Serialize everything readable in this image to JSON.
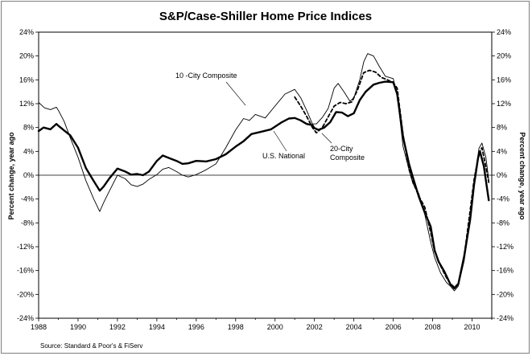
{
  "chart_data": {
    "type": "line",
    "title": "S&P/Case-Shiller Home Price Indices",
    "ylabel_left": "Percent change, year ago",
    "ylabel_right": "Percent change, year ago",
    "source": "Source: Standard & Poor's & FiServ",
    "xlim": [
      1988,
      2011
    ],
    "ylim": [
      -24,
      24
    ],
    "x_ticks": [
      1988,
      1990,
      1992,
      1994,
      1996,
      1998,
      2000,
      2002,
      2004,
      2006,
      2008,
      2010
    ],
    "y_ticks": [
      -24,
      -20,
      -16,
      -12,
      -8,
      -4,
      0,
      4,
      8,
      12,
      16,
      20,
      24
    ],
    "y_tick_labels": [
      "-24%",
      "-20%",
      "-16%",
      "-12%",
      "-8%",
      "-4%",
      "0%",
      "4%",
      "8%",
      "12%",
      "16%",
      "20%",
      "24%"
    ],
    "grid": false,
    "annotations": [
      {
        "text": "10 -City Composite",
        "series": "10 -City Composite"
      },
      {
        "text": "U.S. National",
        "series": "U.S. National"
      },
      {
        "text": "20-City",
        "series": "20-City Composite"
      },
      {
        "text": "Composite",
        "series": "20-City Composite"
      }
    ],
    "series": [
      {
        "name": "U.S. National",
        "color": "#000000",
        "style": "bold",
        "points": [
          [
            1988,
            7.4
          ],
          [
            1988.25,
            8.0
          ],
          [
            1988.6,
            7.7
          ],
          [
            1988.9,
            8.6
          ],
          [
            1989,
            8.3
          ],
          [
            1989.3,
            7.5
          ],
          [
            1989.6,
            6.7
          ],
          [
            1990,
            4.6
          ],
          [
            1990.4,
            1.2
          ],
          [
            1990.8,
            -1.0
          ],
          [
            1991.1,
            -2.6
          ],
          [
            1991.3,
            -1.9
          ],
          [
            1991.6,
            -0.5
          ],
          [
            1992,
            1.1
          ],
          [
            1992.4,
            0.6
          ],
          [
            1992.7,
            0.1
          ],
          [
            1993,
            0.2
          ],
          [
            1993.3,
            0.0
          ],
          [
            1993.6,
            0.6
          ],
          [
            1994,
            2.4
          ],
          [
            1994.3,
            3.3
          ],
          [
            1994.6,
            2.9
          ],
          [
            1995,
            2.4
          ],
          [
            1995.3,
            1.9
          ],
          [
            1995.6,
            2.0
          ],
          [
            1996,
            2.4
          ],
          [
            1996.5,
            2.3
          ],
          [
            1997,
            2.7
          ],
          [
            1997.5,
            3.5
          ],
          [
            1998,
            4.8
          ],
          [
            1998.4,
            5.7
          ],
          [
            1998.8,
            6.9
          ],
          [
            1999.3,
            7.3
          ],
          [
            1999.8,
            7.7
          ],
          [
            2000.3,
            8.8
          ],
          [
            2000.7,
            9.5
          ],
          [
            2001,
            9.6
          ],
          [
            2001.3,
            9.2
          ],
          [
            2001.6,
            8.6
          ],
          [
            2001.9,
            8.4
          ],
          [
            2002,
            7.9
          ],
          [
            2002.2,
            7.6
          ],
          [
            2002.5,
            8.0
          ],
          [
            2002.8,
            8.9
          ],
          [
            2003.1,
            10.6
          ],
          [
            2003.4,
            10.5
          ],
          [
            2003.7,
            9.9
          ],
          [
            2004,
            10.4
          ],
          [
            2004.3,
            12.6
          ],
          [
            2004.6,
            14.0
          ],
          [
            2005,
            15.2
          ],
          [
            2005.3,
            15.5
          ],
          [
            2005.6,
            15.7
          ],
          [
            2006,
            15.6
          ],
          [
            2006.2,
            13.6
          ],
          [
            2006.5,
            6.4
          ],
          [
            2006.8,
            1.9
          ],
          [
            2007,
            -0.4
          ],
          [
            2007.3,
            -3.6
          ],
          [
            2007.6,
            -6.3
          ],
          [
            2007.9,
            -8.6
          ],
          [
            2008.1,
            -12.6
          ],
          [
            2008.3,
            -14.5
          ],
          [
            2008.6,
            -16.2
          ],
          [
            2008.9,
            -18.3
          ],
          [
            2009.1,
            -19.0
          ],
          [
            2009.3,
            -18.3
          ],
          [
            2009.6,
            -13.6
          ],
          [
            2009.9,
            -7.5
          ],
          [
            2010.1,
            -1.6
          ],
          [
            2010.3,
            2.8
          ],
          [
            2010.4,
            4.0
          ],
          [
            2010.6,
            1.5
          ],
          [
            2010.75,
            -2.0
          ],
          [
            2010.85,
            -4.2
          ]
        ]
      },
      {
        "name": "10 -City Composite",
        "color": "#000000",
        "style": "thin",
        "points": [
          [
            1988,
            12.2
          ],
          [
            1988.3,
            11.3
          ],
          [
            1988.6,
            11.0
          ],
          [
            1988.9,
            11.4
          ],
          [
            1989,
            10.9
          ],
          [
            1989.3,
            9.0
          ],
          [
            1989.6,
            6.3
          ],
          [
            1990,
            3.0
          ],
          [
            1990.4,
            -0.9
          ],
          [
            1990.8,
            -4.0
          ],
          [
            1991.1,
            -6.1
          ],
          [
            1991.3,
            -4.6
          ],
          [
            1991.6,
            -2.6
          ],
          [
            1992,
            0.0
          ],
          [
            1992.4,
            -0.6
          ],
          [
            1992.7,
            -1.6
          ],
          [
            1993,
            -1.9
          ],
          [
            1993.3,
            -1.5
          ],
          [
            1993.6,
            -0.7
          ],
          [
            1994,
            0.1
          ],
          [
            1994.3,
            1.0
          ],
          [
            1994.6,
            1.3
          ],
          [
            1995,
            0.6
          ],
          [
            1995.3,
            0.0
          ],
          [
            1995.6,
            -0.3
          ],
          [
            1996,
            0.1
          ],
          [
            1996.5,
            0.9
          ],
          [
            1997,
            1.9
          ],
          [
            1997.5,
            4.6
          ],
          [
            1998,
            7.6
          ],
          [
            1998.4,
            9.5
          ],
          [
            1998.7,
            9.2
          ],
          [
            1999,
            10.2
          ],
          [
            1999.5,
            9.6
          ],
          [
            2000,
            11.6
          ],
          [
            2000.5,
            13.6
          ],
          [
            2001,
            14.4
          ],
          [
            2001.3,
            13.0
          ],
          [
            2001.6,
            10.9
          ],
          [
            2001.9,
            8.6
          ],
          [
            2002.1,
            8.6
          ],
          [
            2002.4,
            9.7
          ],
          [
            2002.7,
            11.2
          ],
          [
            2003,
            14.6
          ],
          [
            2003.2,
            15.4
          ],
          [
            2003.5,
            14.0
          ],
          [
            2003.8,
            12.4
          ],
          [
            2004,
            13.0
          ],
          [
            2004.3,
            16.0
          ],
          [
            2004.5,
            19.0
          ],
          [
            2004.7,
            20.4
          ],
          [
            2005,
            20.0
          ],
          [
            2005.3,
            18.2
          ],
          [
            2005.6,
            16.6
          ],
          [
            2006,
            16.2
          ],
          [
            2006.2,
            13.5
          ],
          [
            2006.5,
            4.8
          ],
          [
            2006.8,
            0.9
          ],
          [
            2007,
            -1.4
          ],
          [
            2007.3,
            -3.1
          ],
          [
            2007.6,
            -6.6
          ],
          [
            2007.9,
            -11.2
          ],
          [
            2008.1,
            -13.8
          ],
          [
            2008.4,
            -16.4
          ],
          [
            2008.7,
            -18.0
          ],
          [
            2008.9,
            -18.6
          ],
          [
            2009.1,
            -19.4
          ],
          [
            2009.3,
            -18.6
          ],
          [
            2009.6,
            -14.4
          ],
          [
            2009.9,
            -7.7
          ],
          [
            2010.1,
            -1.3
          ],
          [
            2010.35,
            4.5
          ],
          [
            2010.5,
            5.4
          ],
          [
            2010.7,
            3.0
          ],
          [
            2010.85,
            -0.8
          ]
        ]
      },
      {
        "name": "20-City Composite",
        "color": "#000000",
        "style": "dashed",
        "points": [
          [
            2001,
            13.1
          ],
          [
            2001.3,
            11.6
          ],
          [
            2001.6,
            9.9
          ],
          [
            2001.9,
            8.0
          ],
          [
            2002.1,
            7.1
          ],
          [
            2002.4,
            8.0
          ],
          [
            2002.7,
            9.8
          ],
          [
            2003,
            11.6
          ],
          [
            2003.3,
            12.2
          ],
          [
            2003.6,
            12.0
          ],
          [
            2003.9,
            12.3
          ],
          [
            2004.2,
            14.4
          ],
          [
            2004.5,
            17.2
          ],
          [
            2004.8,
            17.6
          ],
          [
            2005.1,
            17.3
          ],
          [
            2005.4,
            16.4
          ],
          [
            2005.7,
            16.0
          ],
          [
            2006,
            15.5
          ],
          [
            2006.2,
            14.6
          ],
          [
            2006.5,
            6.8
          ],
          [
            2006.8,
            1.0
          ],
          [
            2007,
            -1.2
          ],
          [
            2007.3,
            -3.5
          ],
          [
            2007.6,
            -5.4
          ],
          [
            2007.9,
            -9.6
          ],
          [
            2008.1,
            -12.8
          ],
          [
            2008.4,
            -15.2
          ],
          [
            2008.7,
            -17.2
          ],
          [
            2008.9,
            -18.2
          ],
          [
            2009.1,
            -18.8
          ],
          [
            2009.3,
            -18.2
          ],
          [
            2009.6,
            -13.6
          ],
          [
            2009.9,
            -6.0
          ],
          [
            2010.1,
            -0.8
          ],
          [
            2010.35,
            3.8
          ],
          [
            2010.5,
            4.6
          ],
          [
            2010.7,
            1.4
          ],
          [
            2010.85,
            -1.2
          ]
        ]
      }
    ]
  }
}
